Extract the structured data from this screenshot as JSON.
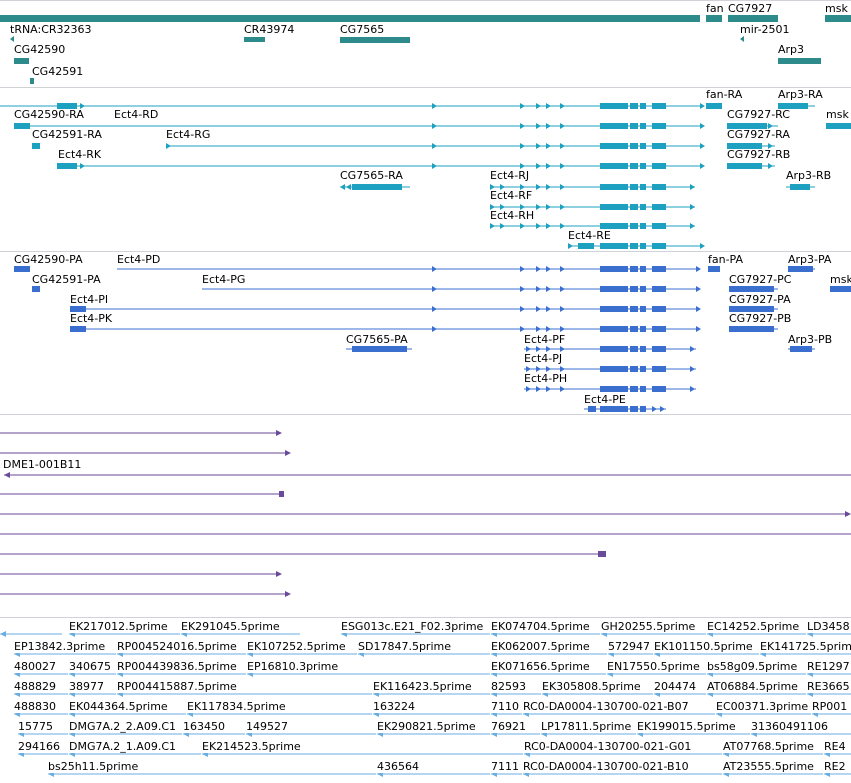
{
  "colors": {
    "gene": "#2e8b8b",
    "transcript": "#1ea0c0",
    "protein": "#3a6fd0",
    "clone": "#6a4a9a",
    "est": "#6aaee0"
  },
  "genes": {
    "labels": [
      "fan",
      "CG7927",
      "msk",
      "tRNA:CR32363",
      "CR43974",
      "CG7565",
      "mir-2501",
      "CG42590",
      "Arp3",
      "CG42591"
    ]
  },
  "transcripts": {
    "labels": [
      "fan-RA",
      "Arp3-RA",
      "CG42590-RA",
      "Ect4-RD",
      "CG7927-RC",
      "msk",
      "CG42591-RA",
      "Ect4-RG",
      "CG7927-RA",
      "Ect4-RK",
      "CG7927-RB",
      "CG7565-RA",
      "Ect4-RJ",
      "Arp3-RB",
      "Ect4-RF",
      "Ect4-RH",
      "Ect4-RE"
    ]
  },
  "proteins": {
    "labels": [
      "CG42590-PA",
      "Ect4-PD",
      "fan-PA",
      "Arp3-PA",
      "CG42591-PA",
      "Ect4-PG",
      "CG7927-PC",
      "msk",
      "Ect4-PI",
      "CG7927-PA",
      "Ect4-PK",
      "CG7927-PB",
      "CG7565-PA",
      "Ect4-PF",
      "Arp3-PB",
      "Ect4-PJ",
      "Ect4-PH",
      "Ect4-PE"
    ]
  },
  "clones": {
    "labels": [
      "DME1-001B11"
    ]
  },
  "ests": {
    "labels": [
      "EK217012.5prime",
      "EK291045.5prime",
      "ESG013c.E21_F02.3prime",
      "EK074704.5prime",
      "GH20255.5prime",
      "EC14252.5prime",
      "LD3458",
      "EP13842.3prime",
      "RP004524016.5prime",
      "EK107252.5prime",
      "SD17847.5prime",
      "EK062007.5prime",
      "572947",
      "EK101150.5prime",
      "EK141725.5prime",
      "480027",
      "340675",
      "RP004439836.5prime",
      "EP16810.3prime",
      "EK071656.5prime",
      "EN17550.5prime",
      "bs58g09.5prime",
      "RE1297",
      "488829",
      "38977",
      "RP004415887.5prime",
      "EK116423.5prime",
      "82593",
      "EK305808.5prime",
      "204474",
      "AT06884.5prime",
      "RE3665",
      "488830",
      "EK044364.5prime",
      "EK117834.5prime",
      "163224",
      "7110",
      "RC0-DA0004-130700-021-B07",
      "EC00371.3prime",
      "RP001",
      "15775",
      "DMG7A.2_2.A09.C1",
      "163450",
      "149527",
      "EK290821.5prime",
      "76921",
      "LP17811.5prime",
      "EK199015.5prime",
      "31360491106",
      "294166",
      "DMG7A.2_1.A09.C1",
      "EK214523.5prime",
      "RC0-DA0004-130700-021-G01",
      "AT07768.5prime",
      "RE4",
      "bs25h11.5prime",
      "436564",
      "7111",
      "RC0-DA0004-130700-021-B10",
      "AT23555.5prime",
      "RE2"
    ]
  }
}
